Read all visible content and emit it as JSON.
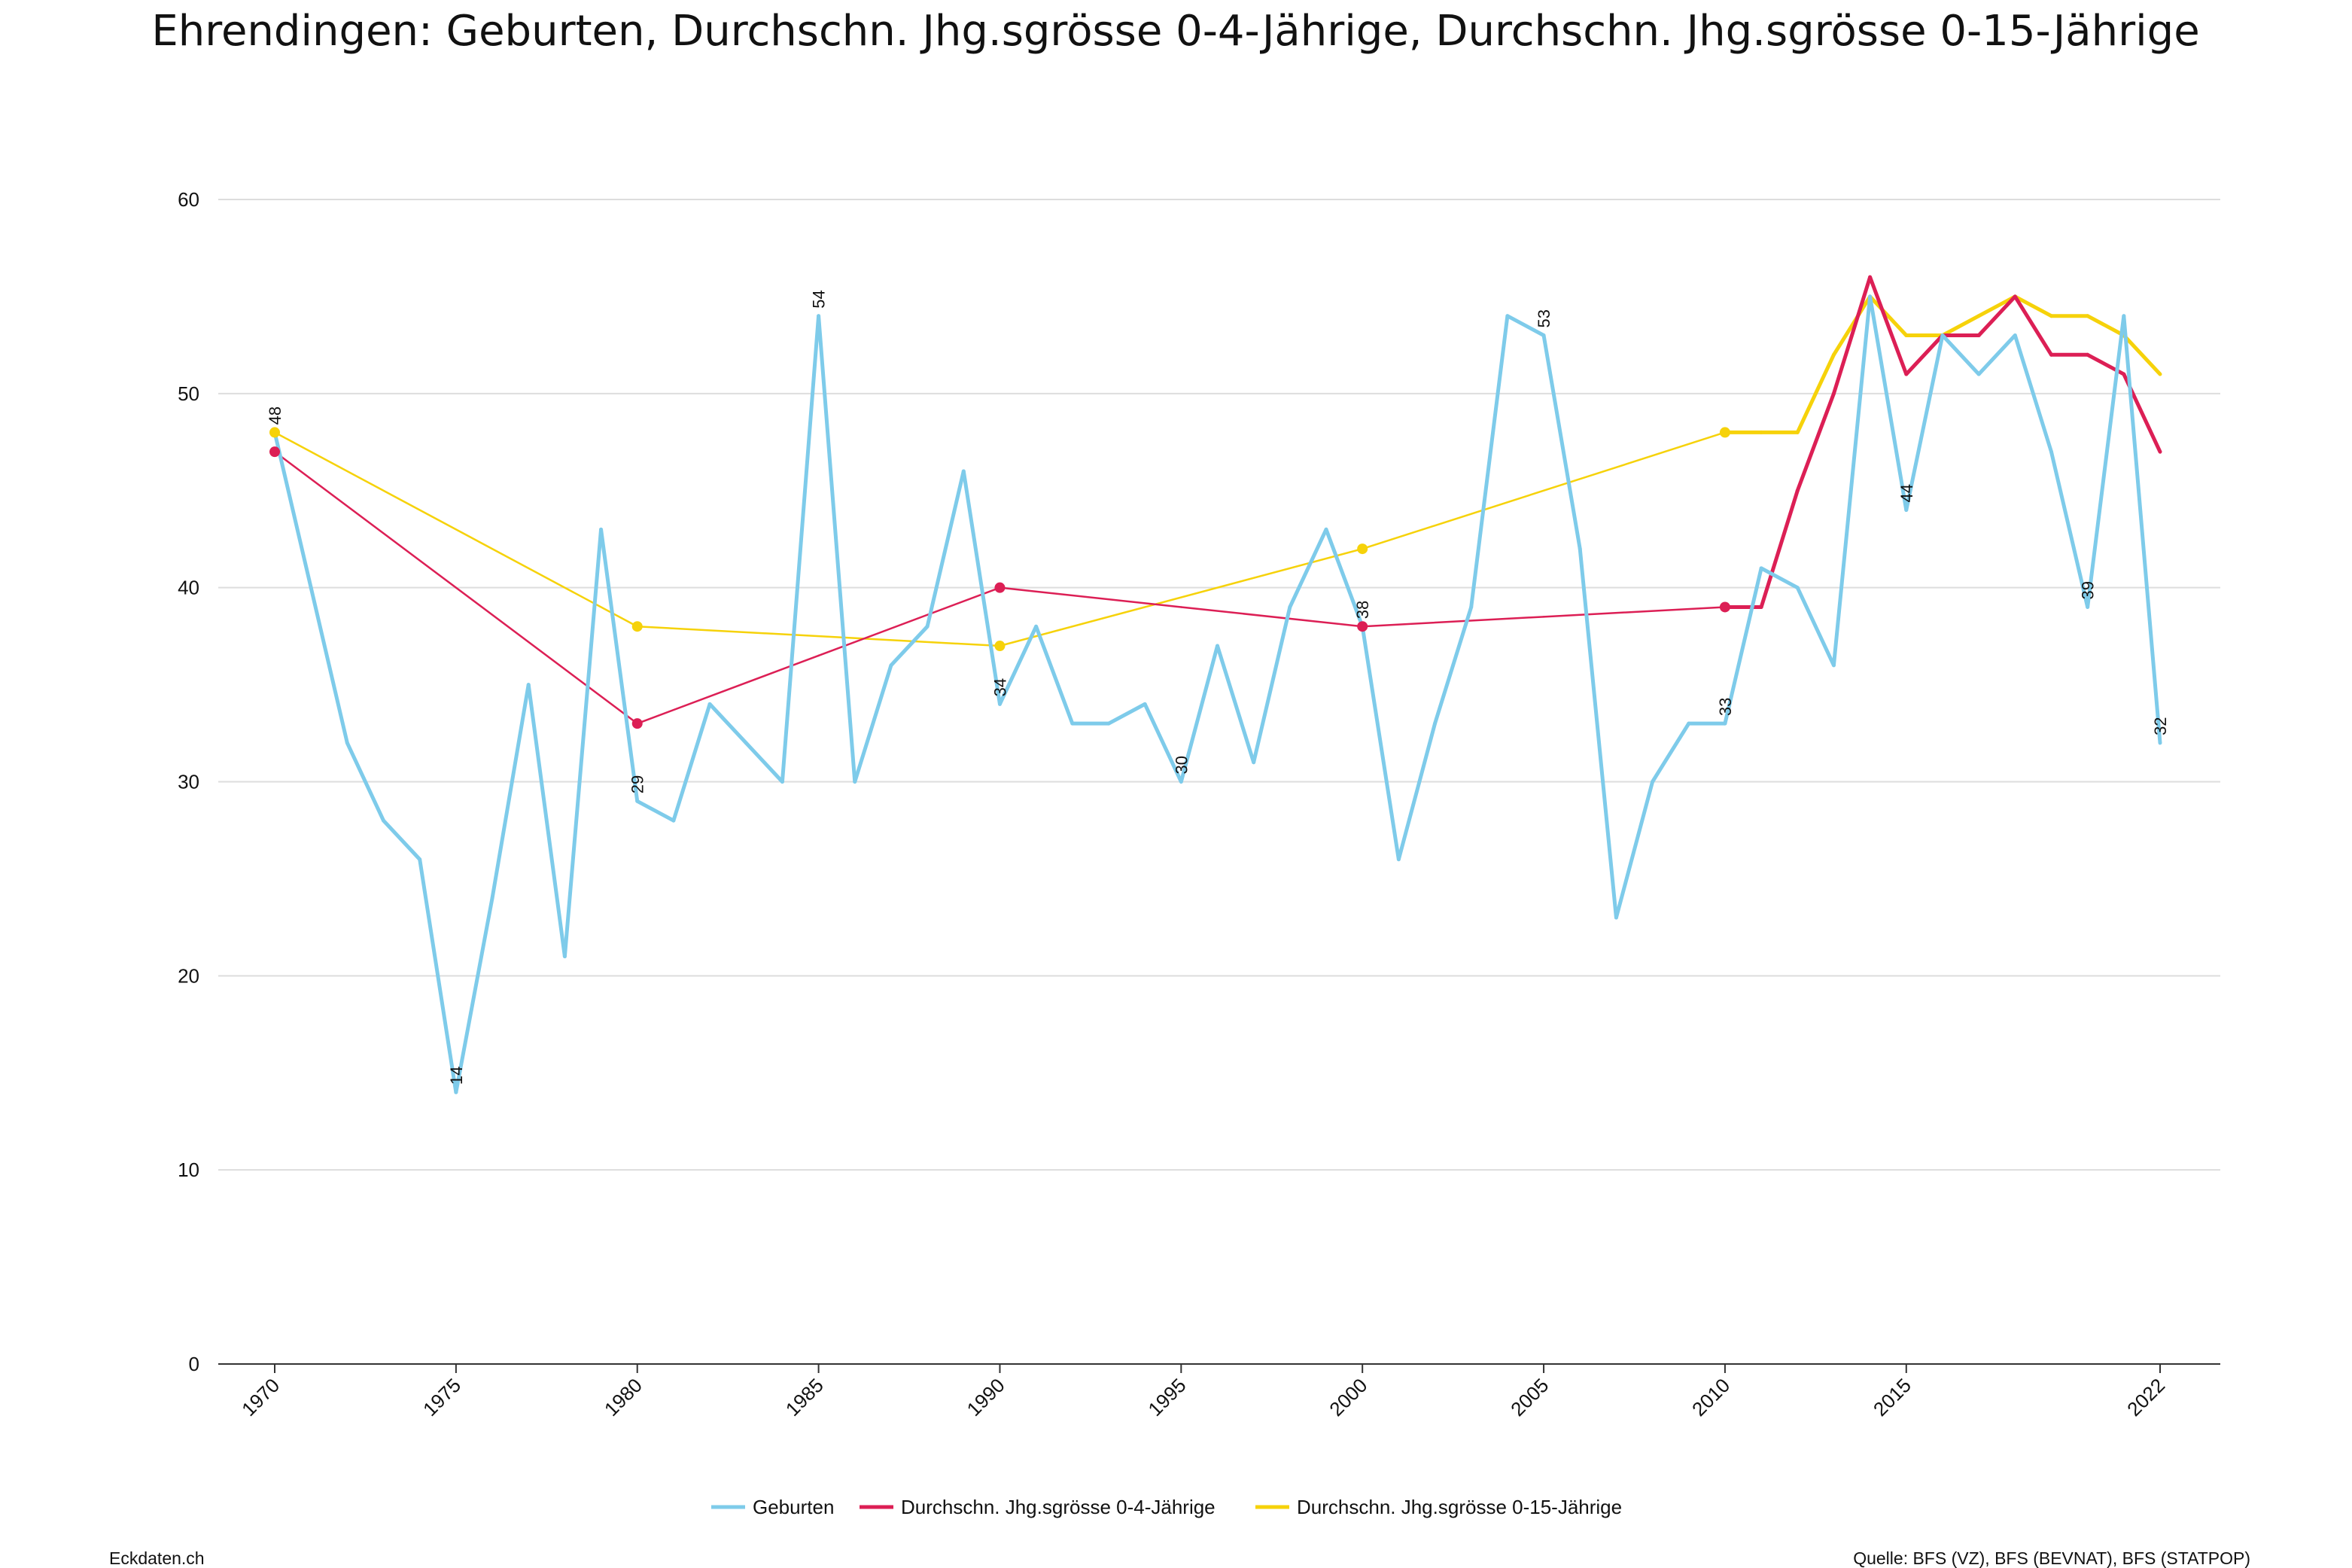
{
  "title": "Ehrendingen: Geburten, Durchschn. Jhg.sgrösse 0-4-Jährige, Durchschn. Jhg.sgrösse 0-15-Jährige",
  "footer": {
    "left": "Eckdaten.ch",
    "right": "Quelle: BFS (VZ), BFS (BEVNAT), BFS (STATPOP)"
  },
  "colors": {
    "geburten": "#7ecbea",
    "jhg04": "#dc1f55",
    "jhg015": "#f6d20a",
    "grid": "#dddddd",
    "axis": "#333333"
  },
  "chart_data": {
    "type": "line",
    "title": "Ehrendingen: Geburten, Durchschn. Jhg.sgrösse 0-4-Jährige, Durchschn. Jhg.sgrösse 0-15-Jährige",
    "xlabel": "",
    "ylabel": "",
    "xlim": [
      1970,
      2022
    ],
    "ylim": [
      0,
      60
    ],
    "yticks": [
      0,
      10,
      20,
      30,
      40,
      50,
      60
    ],
    "xticks": [
      1970,
      1975,
      1980,
      1985,
      1990,
      1995,
      2000,
      2005,
      2010,
      2015,
      2022
    ],
    "grid": true,
    "legend_position": "bottom",
    "series": [
      {
        "name": "Geburten",
        "x": [
          1970,
          1971,
          1972,
          1973,
          1974,
          1975,
          1976,
          1977,
          1978,
          1979,
          1980,
          1981,
          1982,
          1983,
          1984,
          1985,
          1986,
          1987,
          1988,
          1989,
          1990,
          1991,
          1992,
          1993,
          1994,
          1995,
          1996,
          1997,
          1998,
          1999,
          2000,
          2001,
          2002,
          2003,
          2004,
          2005,
          2006,
          2007,
          2008,
          2009,
          2010,
          2011,
          2012,
          2013,
          2014,
          2015,
          2016,
          2017,
          2018,
          2019,
          2020,
          2021,
          2022
        ],
        "y": [
          48,
          40,
          32,
          28,
          26,
          14,
          24,
          35,
          21,
          43,
          29,
          28,
          34,
          32,
          30,
          54,
          30,
          36,
          38,
          46,
          34,
          38,
          33,
          33,
          34,
          30,
          37,
          31,
          39,
          43,
          38,
          26,
          33,
          39,
          54,
          53,
          42,
          23,
          30,
          33,
          33,
          41,
          40,
          36,
          55,
          44,
          53,
          51,
          53,
          47,
          39,
          54,
          32
        ],
        "labels": [
          {
            "x": 1970,
            "text": "48"
          },
          {
            "x": 1975,
            "text": "14"
          },
          {
            "x": 1980,
            "text": "29"
          },
          {
            "x": 1985,
            "text": "54"
          },
          {
            "x": 1990,
            "text": "34"
          },
          {
            "x": 1995,
            "text": "30"
          },
          {
            "x": 2000,
            "text": "38"
          },
          {
            "x": 2005,
            "text": "53"
          },
          {
            "x": 2010,
            "text": "33"
          },
          {
            "x": 2015,
            "text": "44"
          },
          {
            "x": 2020,
            "text": "39"
          },
          {
            "x": 2022,
            "text": "32"
          }
        ]
      },
      {
        "name": "Durchschn. Jhg.sgrösse 0-4-Jährige",
        "x": [
          1970,
          1975,
          1980,
          1985,
          1990,
          1995,
          2000,
          2005,
          2010,
          2011,
          2012,
          2013,
          2014,
          2015,
          2016,
          2017,
          2018,
          2019,
          2020,
          2021,
          2022
        ],
        "y": [
          47,
          40,
          33,
          36.5,
          40,
          39,
          38,
          38.5,
          39,
          39,
          45,
          50,
          56,
          51,
          53,
          53,
          55,
          52,
          52,
          51,
          47
        ],
        "markers": [
          1970,
          1980,
          1990,
          2000,
          2010
        ]
      },
      {
        "name": "Durchschn. Jhg.sgrösse 0-15-Jährige",
        "x": [
          1970,
          1980,
          1990,
          2000,
          2010,
          2011,
          2012,
          2013,
          2014,
          2015,
          2016,
          2017,
          2018,
          2019,
          2020,
          2021,
          2022
        ],
        "y": [
          48,
          38,
          37,
          42,
          48,
          48,
          48,
          52,
          55,
          53,
          53,
          54,
          55,
          54,
          54,
          53,
          51
        ],
        "markers": [
          1970,
          1980,
          1990,
          2000,
          2010
        ]
      }
    ]
  }
}
